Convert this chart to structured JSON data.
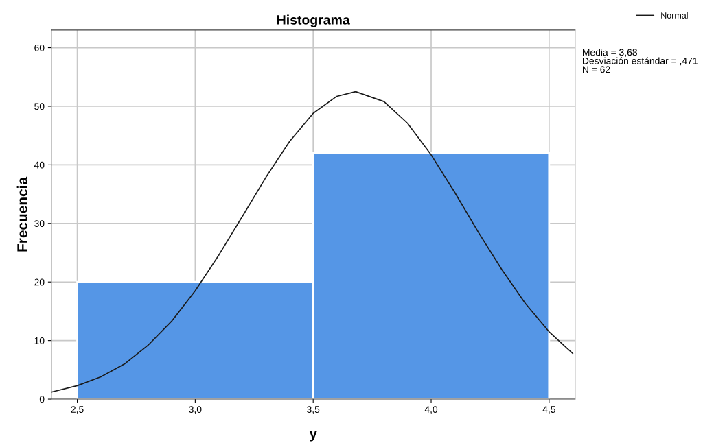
{
  "chart_data": {
    "type": "histogram",
    "title": "Histograma",
    "xlabel": "y",
    "ylabel": "Frecuencia",
    "bins": [
      2.5,
      3.5,
      4.5
    ],
    "series": [
      {
        "color": "#5596e6",
        "values": [
          20,
          42
        ]
      },
      {
        "type": "line",
        "name": "Normal",
        "color": "#1a1a1a",
        "x": [
          2.39,
          2.5,
          2.6,
          2.7,
          2.8,
          2.9,
          3.0,
          3.1,
          3.2,
          3.3,
          3.4,
          3.5,
          3.6,
          3.68,
          3.8,
          3.9,
          4.0,
          4.1,
          4.2,
          4.3,
          4.4,
          4.5,
          4.6
        ],
        "values": [
          1.2,
          2.3,
          3.8,
          6.0,
          9.2,
          13.3,
          18.5,
          24.6,
          31.2,
          37.9,
          44.0,
          48.8,
          51.7,
          52.5,
          50.8,
          47.1,
          41.7,
          35.3,
          28.5,
          22.1,
          16.3,
          11.5,
          7.8
        ]
      }
    ],
    "xlim": [
      2.39,
      4.61
    ],
    "xticks": [
      {
        "value": 2.5,
        "label": "2,5"
      },
      {
        "value": 3.0,
        "label": "3,0"
      },
      {
        "value": 3.5,
        "label": "3,5"
      },
      {
        "value": 4.0,
        "label": "4,0"
      },
      {
        "value": 4.5,
        "label": "4,5"
      }
    ],
    "ylim": [
      0,
      63
    ],
    "yticks": [
      0,
      10,
      20,
      30,
      40,
      50,
      60
    ],
    "grid": true,
    "legend": "top right",
    "annotations": [
      "Media = 3,68\nDesviación estándar = ,471\nN = 62"
    ]
  }
}
